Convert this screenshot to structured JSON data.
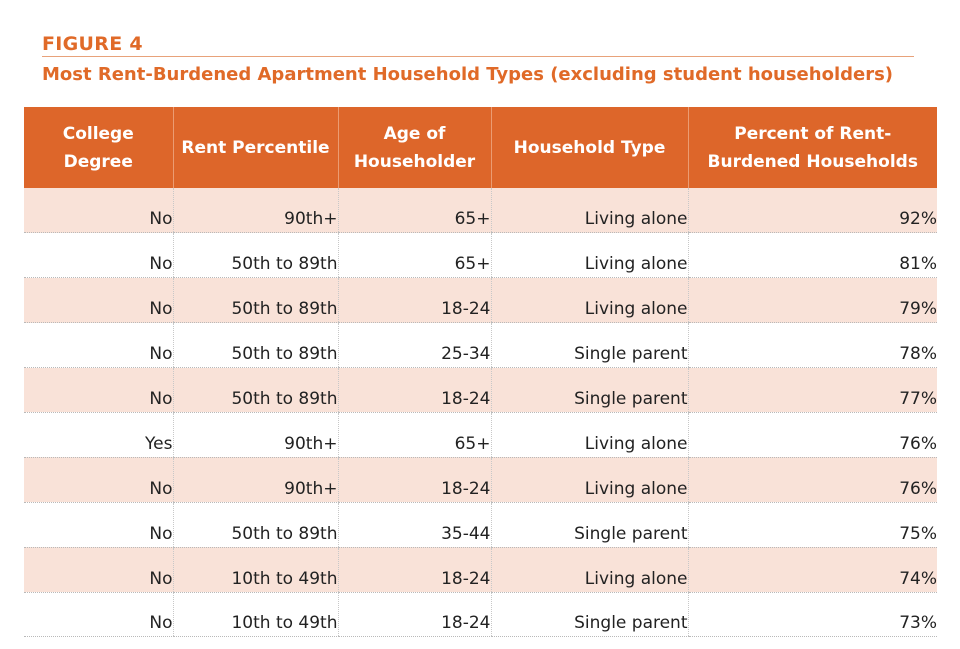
{
  "figure_label": "FIGURE 4",
  "title": "Most Rent-Burdened Apartment Household Types (excluding student householders)",
  "chart_data": {
    "type": "table",
    "title": "Most Rent-Burdened Apartment Household Types (excluding student householders)",
    "columns": [
      "College Degree",
      "Rent Percentile",
      "Age of Householder",
      "Household Type",
      "Percent of Rent-Burdened Households"
    ],
    "rows": [
      [
        "No",
        "90th+",
        "65+",
        "Living alone",
        "92%"
      ],
      [
        "No",
        "50th to 89th",
        "65+",
        "Living alone",
        "81%"
      ],
      [
        "No",
        "50th to 89th",
        "18-24",
        "Living alone",
        "79%"
      ],
      [
        "No",
        "50th to 89th",
        "25-34",
        "Single parent",
        "78%"
      ],
      [
        "No",
        "50th to 89th",
        "18-24",
        "Single parent",
        "77%"
      ],
      [
        "Yes",
        "90th+",
        "65+",
        "Living alone",
        "76%"
      ],
      [
        "No",
        "90th+",
        "18-24",
        "Living alone",
        "76%"
      ],
      [
        "No",
        "50th to 89th",
        "35-44",
        "Single parent",
        "75%"
      ],
      [
        "No",
        "10th to 49th",
        "18-24",
        "Living alone",
        "74%"
      ],
      [
        "No",
        "10th to 49th",
        "18-24",
        "Single parent",
        "73%"
      ]
    ]
  },
  "colors": {
    "accent": "#e06a28",
    "header_bg": "#dd662a",
    "shaded_row": "#f9e2d8"
  }
}
